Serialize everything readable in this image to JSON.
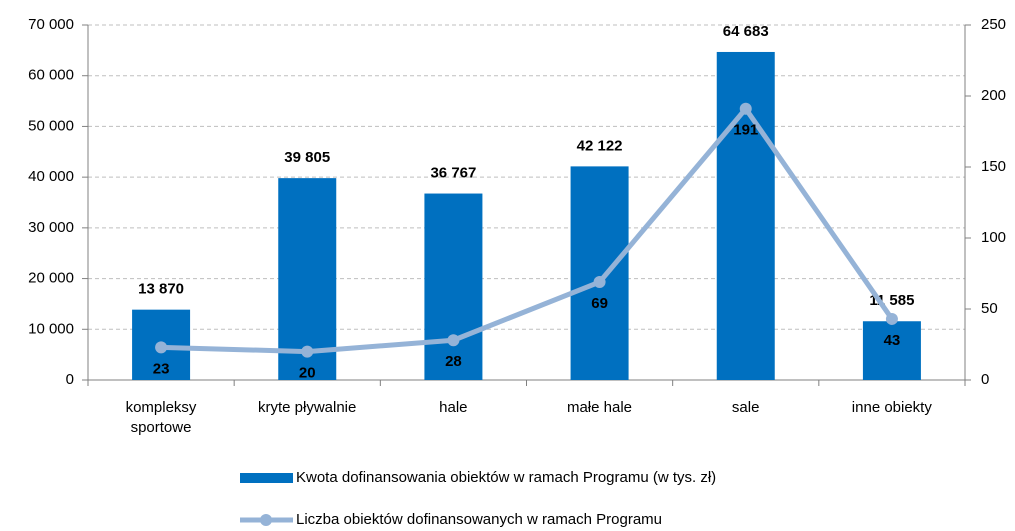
{
  "chart_data": {
    "type": "bar-line",
    "categories": [
      "kompleksy\nsportowe",
      "kryte pływalnie",
      "hale",
      "małe hale",
      "sale",
      "inne obiekty"
    ],
    "series": [
      {
        "name": "Kwota dofinansowania obiektów w ramach Programu (w tys. zł)",
        "type": "bar",
        "color": "#0070c0",
        "values": [
          13870,
          39805,
          36767,
          42122,
          64683,
          11585
        ],
        "value_labels": [
          "13 870",
          "39 805",
          "36 767",
          "42 122",
          "64 683",
          "11 585"
        ]
      },
      {
        "name": "Liczba obiektów dofinansowanych w ramach Programu",
        "type": "line",
        "axis": "y2",
        "color": "#95b3d7",
        "values": [
          23,
          20,
          28,
          69,
          191,
          43
        ]
      }
    ],
    "ylim": [
      0,
      70000
    ],
    "yticks": [
      0,
      {
        "value": 10000,
        "label": "10 000"
      },
      {
        "value": 20000,
        "label": "20 000"
      },
      {
        "value": 30000,
        "label": "30 000"
      },
      {
        "value": 40000,
        "label": "40 000"
      },
      {
        "value": 50000,
        "label": "50 000"
      },
      {
        "value": 60000,
        "label": "60 000"
      },
      {
        "value": 70000,
        "label": "70 000"
      }
    ],
    "y2lim": [
      0,
      250
    ],
    "y2ticks": [
      0,
      50,
      100,
      150,
      200,
      250
    ],
    "grid": true,
    "legend": "bottom"
  }
}
